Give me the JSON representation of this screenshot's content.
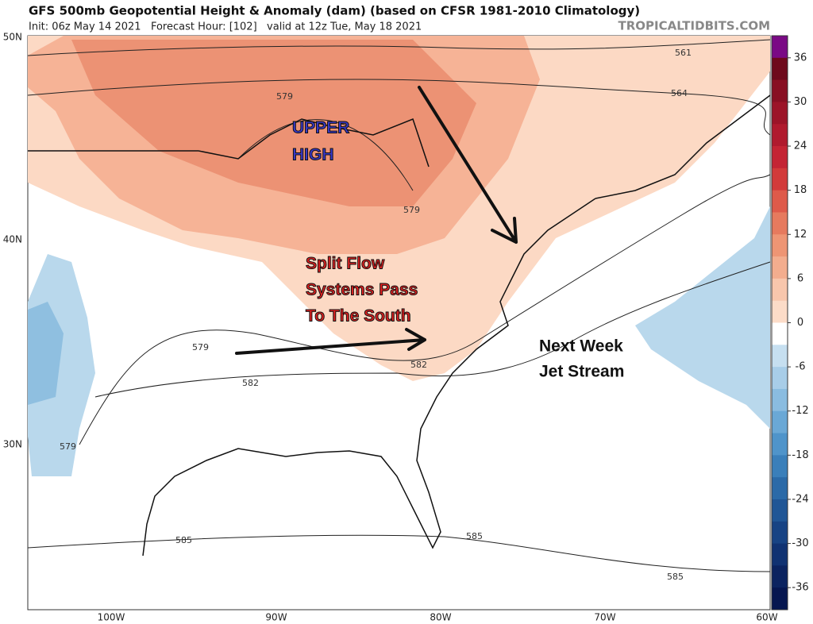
{
  "header": {
    "title": "GFS 500mb Geopotential Height & Anomaly (dam) (based on CFSR 1981-2010 Climatology)",
    "subtitle": "Init: 06z May 14 2021   Forecast Hour: [102]   valid at 12z Tue, May 18 2021",
    "brand": "TROPICALTIDBITS.COM"
  },
  "map": {
    "lat_labels": [
      "50N",
      "40N",
      "30N"
    ],
    "lon_labels": [
      "100W",
      "90W",
      "80W",
      "70W",
      "60W"
    ],
    "contour_labels": [
      "561",
      "564",
      "579",
      "579",
      "579",
      "582",
      "582",
      "579",
      "585",
      "585",
      "585"
    ],
    "annotations": [
      {
        "lines": [
          "UPPER",
          "HIGH"
        ]
      },
      {
        "lines": [
          "Split Flow",
          "Systems Pass",
          "To The South"
        ]
      },
      {
        "lines": [
          "Next Week",
          "Jet Stream"
        ]
      }
    ]
  },
  "colorbar": {
    "lim": [
      -39,
      39
    ],
    "ticks": [
      36,
      30,
      24,
      18,
      12,
      6,
      0,
      -6,
      -12,
      -18,
      -24,
      -30,
      -36
    ],
    "colors": [
      "#7a0a85",
      "#6e0a1c",
      "#880f22",
      "#9c1428",
      "#b01a2e",
      "#c42434",
      "#d23a3a",
      "#de5a4a",
      "#e67a5e",
      "#ee9574",
      "#f3ad8e",
      "#f8c6ac",
      "#fcdcc8",
      "#ffffff",
      "#c6dff0",
      "#a8cde8",
      "#8abce0",
      "#6aa8d6",
      "#4f94ca",
      "#3a7fba",
      "#2b6aa8",
      "#205696",
      "#174384",
      "#103272",
      "#0b2360",
      "#061650"
    ]
  }
}
